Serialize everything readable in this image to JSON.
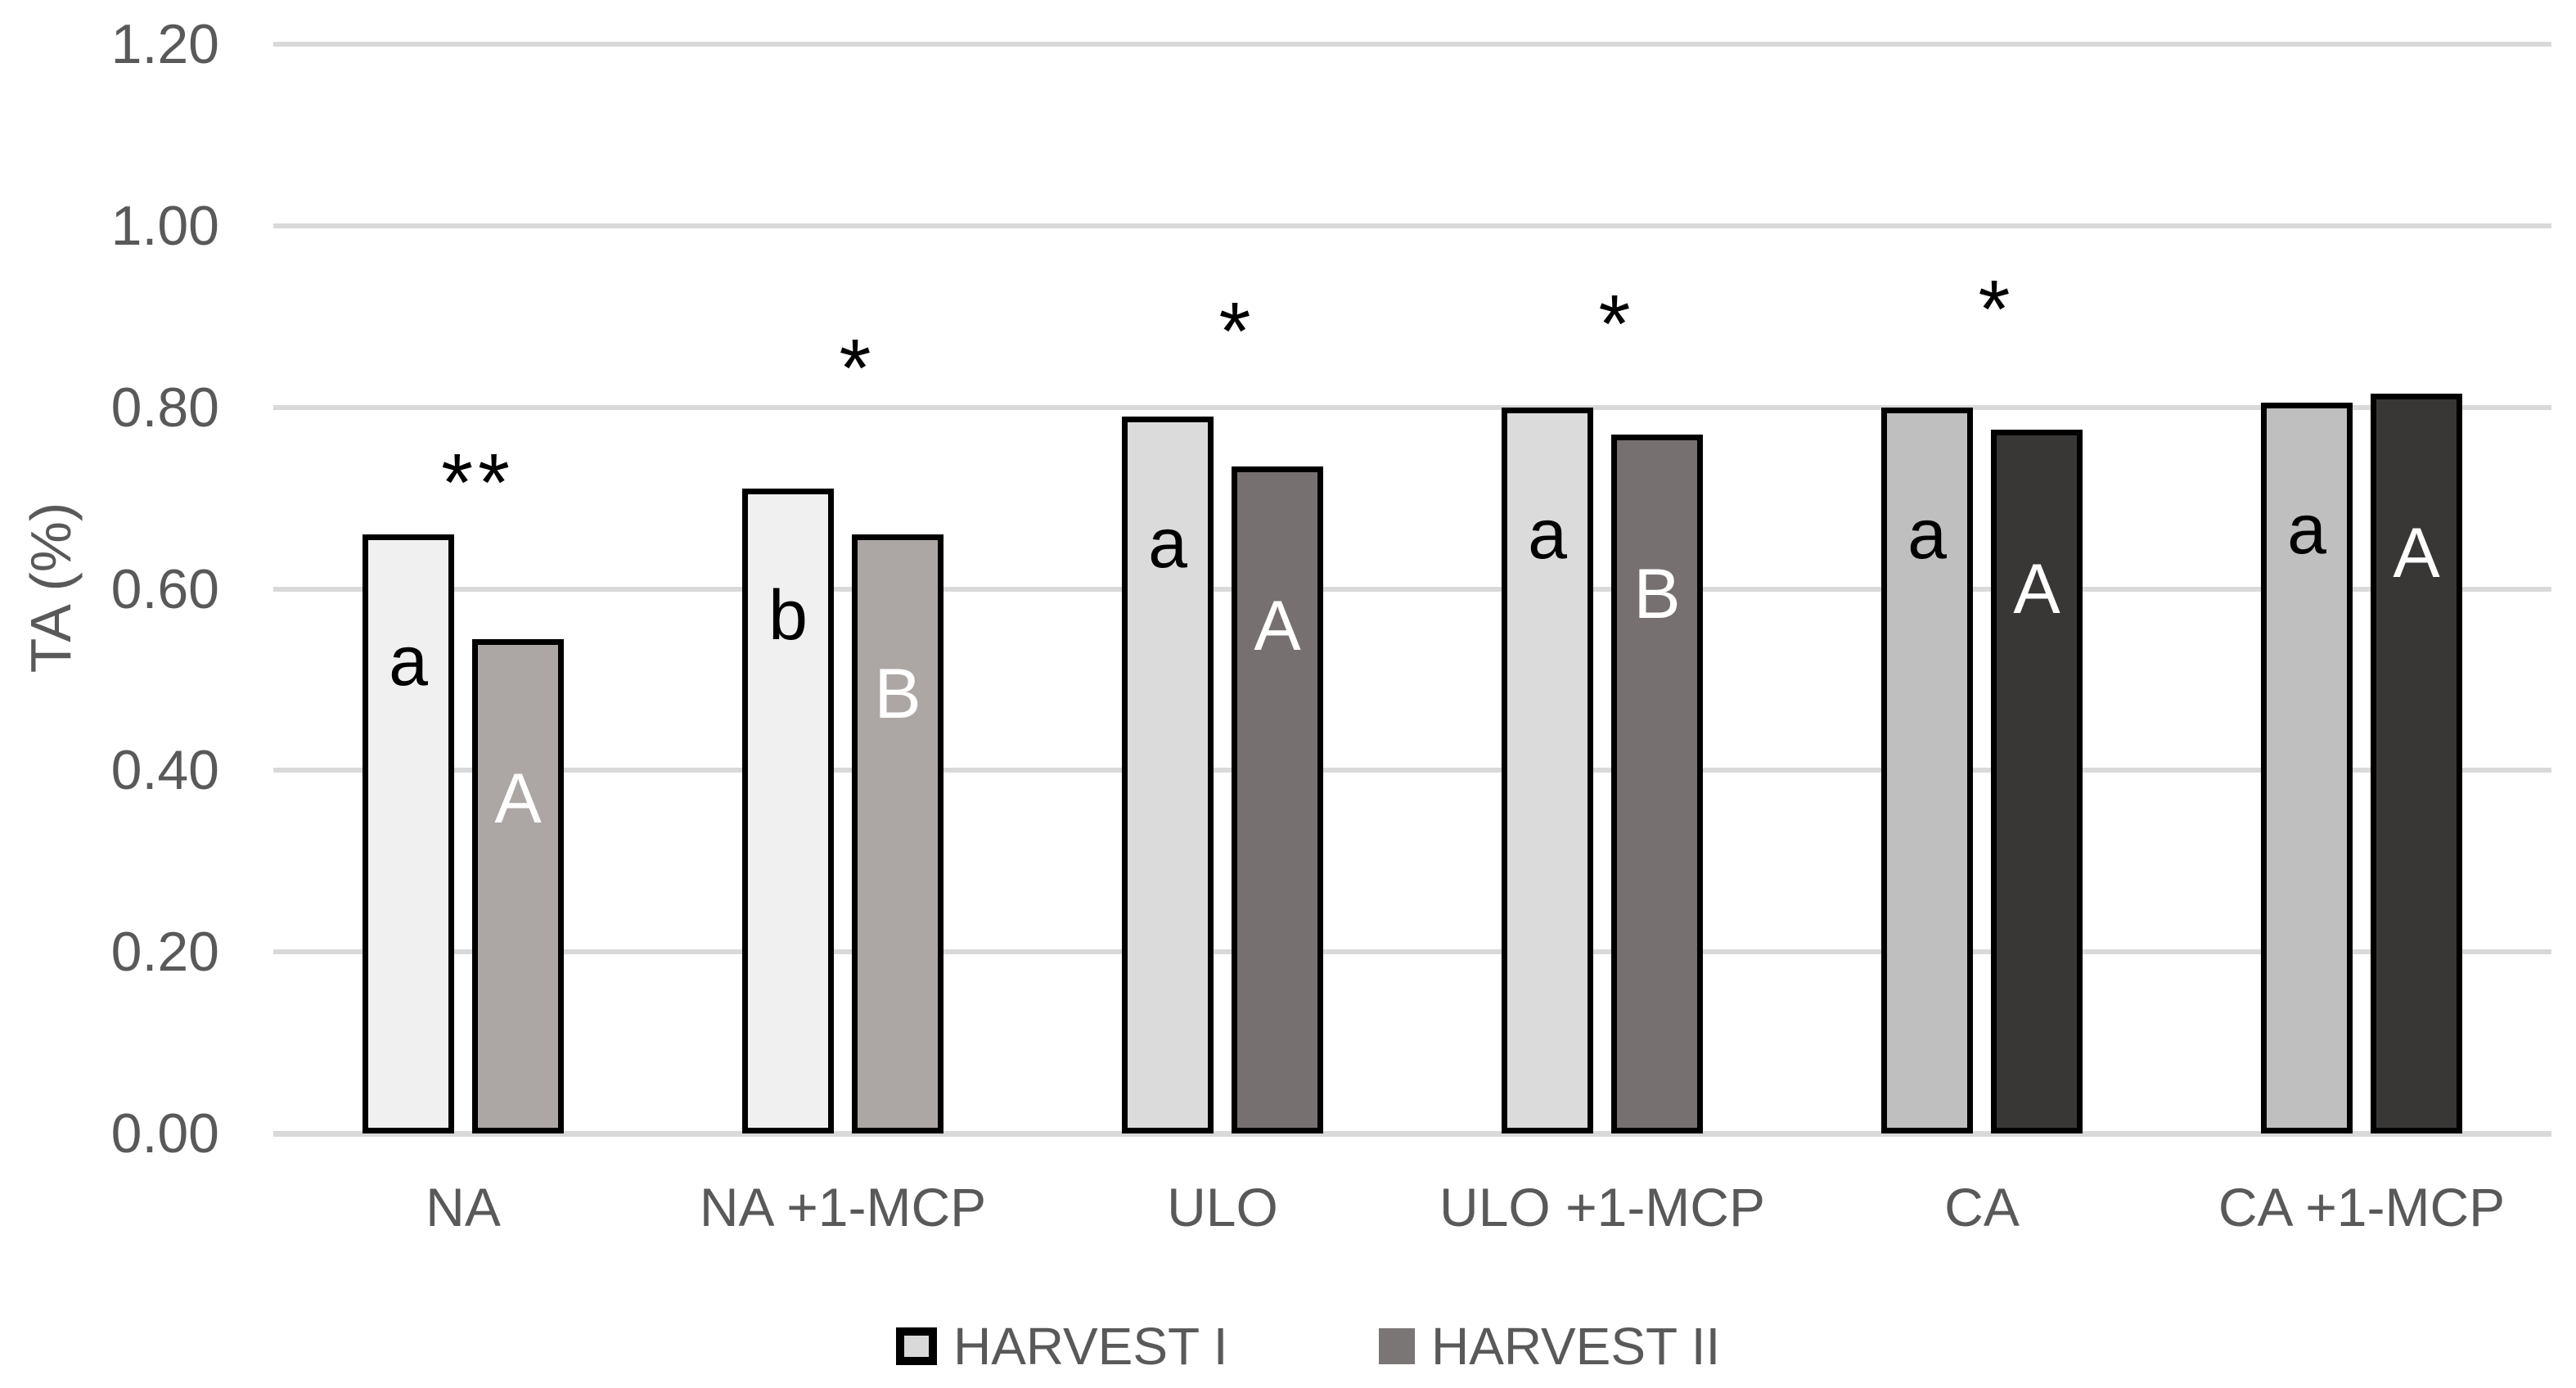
{
  "chart_data": {
    "type": "bar",
    "title": "",
    "xlabel": "",
    "ylabel": "TA (%)",
    "ylim": [
      0,
      1.2
    ],
    "ytick_step": 0.2,
    "ytick_labels": [
      "0.00",
      "0.20",
      "0.40",
      "0.60",
      "0.80",
      "1.00",
      "1.20"
    ],
    "grid": true,
    "legend_position": "bottom",
    "categories": [
      "NA",
      "NA +1-MCP",
      "ULO",
      "ULO +1-MCP",
      "CA",
      "CA +1-MCP"
    ],
    "series": [
      {
        "name": "HARVEST I",
        "values": [
          0.66,
          0.71,
          0.79,
          0.8,
          0.8,
          0.805
        ],
        "bar_labels": [
          "a",
          "b",
          "a",
          "a",
          "a",
          "a"
        ],
        "bar_label_color": "#000000",
        "fills": [
          "#F1F0F0",
          "#F1F0F0",
          "#DCDBDB",
          "#DCDBDB",
          "#C0BFBF",
          "#C0BFBF"
        ]
      },
      {
        "name": "HARVEST II",
        "values": [
          0.545,
          0.66,
          0.735,
          0.77,
          0.775,
          0.815
        ],
        "bar_labels": [
          "A",
          "B",
          "A",
          "B",
          "A",
          "A"
        ],
        "bar_label_color": "#FFFFFF",
        "fills": [
          "#ACA7A4",
          "#ACA7A4",
          "#767170",
          "#767170",
          "#393636",
          "#393636"
        ]
      }
    ],
    "significance_markers": [
      {
        "category": "NA",
        "text": "**",
        "y": 0.733
      },
      {
        "category": "NA +1-MCP",
        "text": "*",
        "y": 0.859
      },
      {
        "category": "ULO",
        "text": "*",
        "y": 0.9
      },
      {
        "category": "ULO +1-MCP",
        "text": "*",
        "y": 0.908
      },
      {
        "category": "CA",
        "text": "*",
        "y": 0.924
      }
    ],
    "colors": {
      "bar_border": "#000000",
      "gridline": "#D9D9D9",
      "axis_line": "#D9D9D9",
      "axis_text": "#595959"
    }
  },
  "legend": {
    "items": [
      {
        "label": "HARVEST I",
        "swatch_fill": "#D9D9D9",
        "swatch_border": "#000000"
      },
      {
        "label": "HARVEST II",
        "swatch_fill": "#7B7676",
        "swatch_border": "none"
      }
    ]
  }
}
